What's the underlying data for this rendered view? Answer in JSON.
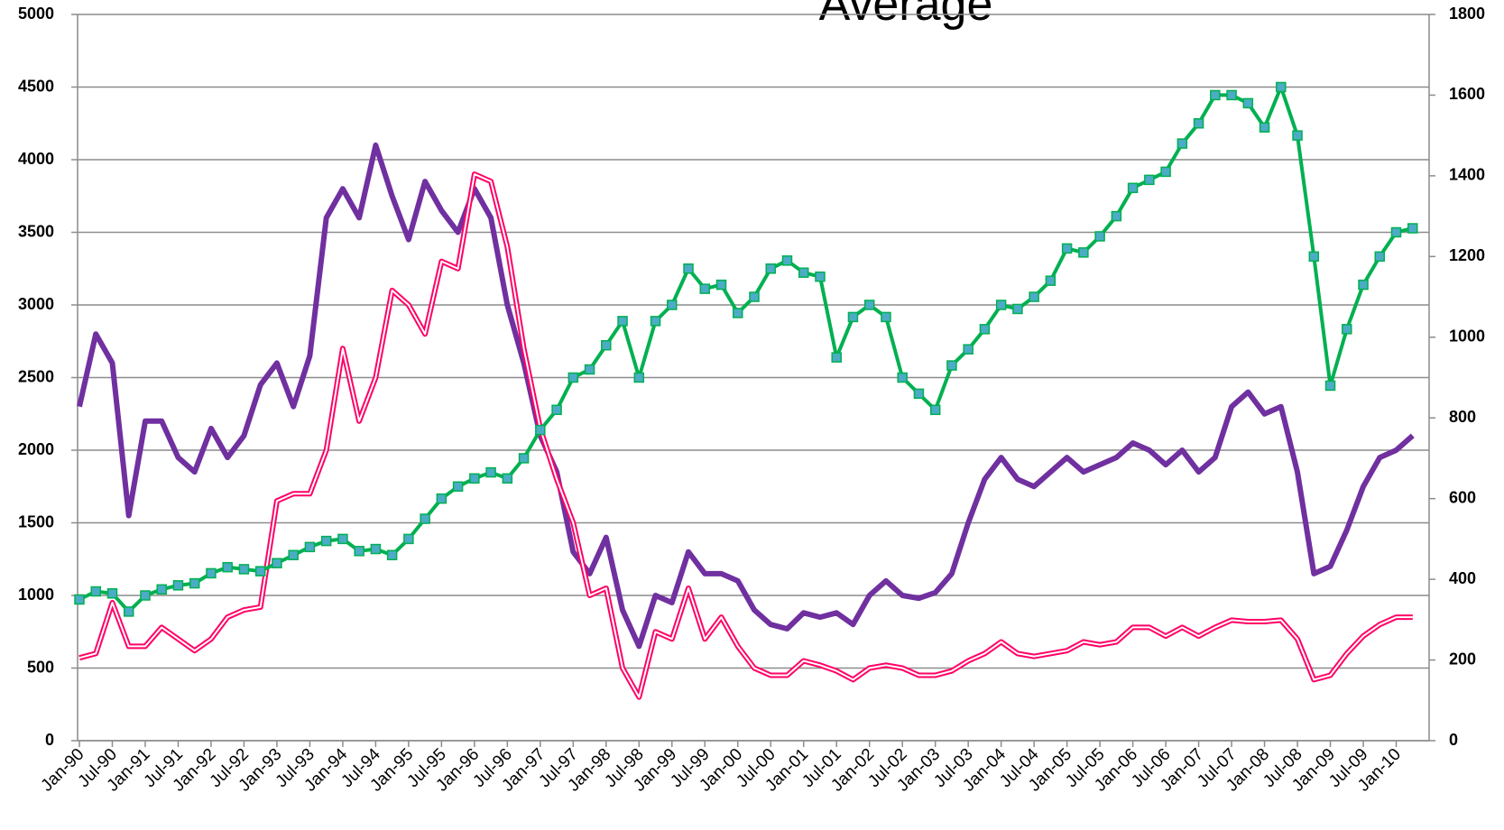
{
  "chart_data": {
    "type": "line",
    "title": "Average",
    "categories": [
      "Jan-90",
      null,
      "Jul-90",
      null,
      "Jan-91",
      null,
      "Jul-91",
      null,
      "Jan-92",
      null,
      "Jul-92",
      null,
      "Jan-93",
      null,
      "Jul-93",
      null,
      "Jan-94",
      null,
      "Jul-94",
      null,
      "Jan-95",
      null,
      "Jul-95",
      null,
      "Jan-96",
      null,
      "Jul-96",
      null,
      "Jan-97",
      null,
      "Jul-97",
      null,
      "Jan-98",
      null,
      "Jul-98",
      null,
      "Jan-99",
      null,
      "Jul-99",
      null,
      "Jan-00",
      null,
      "Jul-00",
      null,
      "Jan-01",
      null,
      "Jul-01",
      null,
      "Jan-02",
      null,
      "Jul-02",
      null,
      "Jan-03",
      null,
      "Jul-03",
      null,
      "Jan-04",
      null,
      "Jul-04",
      null,
      "Jan-05",
      null,
      "Jul-05",
      null,
      "Jan-06",
      null,
      "Jul-06",
      null,
      "Jan-07",
      null,
      "Jul-07",
      null,
      "Jan-08",
      null,
      "Jul-08",
      null,
      "Jan-09",
      null,
      "Jul-09",
      null,
      "Jan-10",
      null
    ],
    "series": [
      {
        "color": "#7030a0",
        "values": [
          2300,
          2800,
          2600,
          1550,
          2200,
          2200,
          1950,
          1850,
          2150,
          1950,
          2100,
          2450,
          2600,
          2300,
          2650,
          3600,
          3800,
          3600,
          4100,
          3750,
          3450,
          3850,
          3650,
          3500,
          3800,
          3600,
          3000,
          2600,
          2100,
          1850,
          1300,
          1150,
          1400,
          900,
          650,
          1000,
          950,
          1300,
          1150,
          1150,
          1100,
          900,
          800,
          770,
          880,
          850,
          880,
          800,
          1000,
          1100,
          1000,
          980,
          1020,
          1150,
          1500,
          1800,
          1950,
          1800,
          1750,
          1850,
          1950,
          1850,
          1900,
          1950,
          2050,
          2000,
          1900,
          2000,
          1850,
          1950,
          2300,
          2400,
          2250,
          2300,
          1850,
          1150,
          1200,
          1450,
          1750,
          1950,
          2000,
          2100
        ]
      },
      {
        "color": "#ff0066",
        "style": "double",
        "values": [
          570,
          600,
          950,
          650,
          650,
          780,
          700,
          620,
          700,
          850,
          900,
          920,
          1650,
          1700,
          1700,
          2000,
          2700,
          2200,
          2500,
          3100,
          3000,
          2800,
          3300,
          3250,
          3900,
          3850,
          3400,
          2700,
          2150,
          1800,
          1500,
          1000,
          1050,
          500,
          300,
          750,
          700,
          1050,
          700,
          850,
          650,
          500,
          450,
          450,
          550,
          520,
          480,
          420,
          500,
          520,
          500,
          450,
          450,
          480,
          550,
          600,
          680,
          600,
          580,
          600,
          620,
          680,
          660,
          680,
          780,
          780,
          720,
          780,
          720,
          780,
          830,
          820,
          820,
          830,
          700,
          420,
          450,
          600,
          720,
          800,
          850,
          850
        ]
      },
      {
        "color": "#00b050",
        "axis": "y2",
        "marker": "square",
        "marker_color": "#4bacc6",
        "values": [
          350,
          370,
          365,
          320,
          360,
          375,
          385,
          390,
          415,
          430,
          425,
          420,
          440,
          460,
          480,
          495,
          500,
          470,
          475,
          460,
          500,
          550,
          600,
          630,
          650,
          665,
          650,
          700,
          770,
          820,
          900,
          920,
          980,
          1040,
          900,
          1040,
          1080,
          1170,
          1120,
          1130,
          1060,
          1100,
          1170,
          1190,
          1160,
          1150,
          950,
          1050,
          1080,
          1050,
          900,
          860,
          820,
          930,
          970,
          1020,
          1080,
          1070,
          1100,
          1140,
          1220,
          1210,
          1250,
          1300,
          1370,
          1390,
          1410,
          1480,
          1530,
          1600,
          1600,
          1580,
          1520,
          1620,
          1500,
          1200,
          880,
          1020,
          1130,
          1200,
          1260,
          1270
        ]
      }
    ],
    "ylim": [
      0,
      5000
    ],
    "yticks": [
      0,
      500,
      1000,
      1500,
      2000,
      2500,
      3000,
      3500,
      4000,
      4500,
      5000
    ],
    "y2lim": [
      0,
      1800
    ],
    "y2ticks": [
      0,
      200,
      400,
      600,
      800,
      1000,
      1200,
      1400,
      1600,
      1800
    ],
    "grid": true
  }
}
